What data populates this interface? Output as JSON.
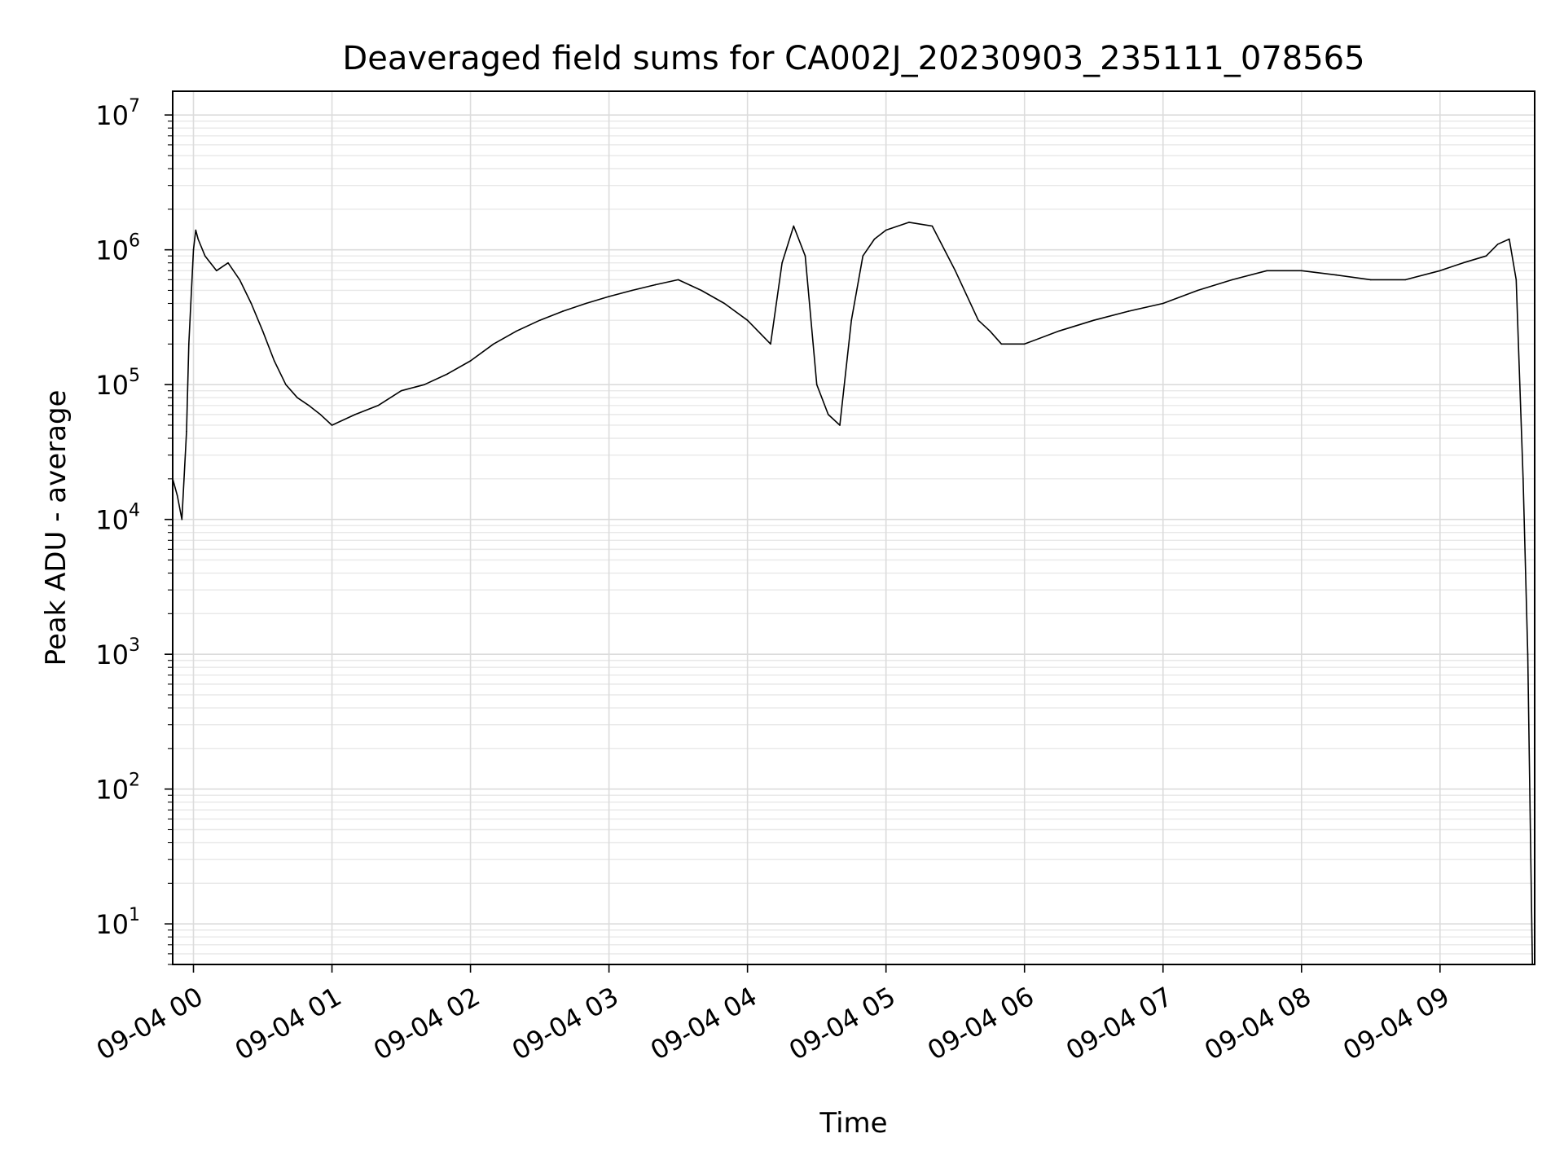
{
  "chart_data": {
    "type": "line",
    "title": "Deaveraged field sums for CA002J_20230903_235111_078565",
    "xlabel": "Time",
    "ylabel": "Peak ADU - average",
    "y_scale": "log",
    "ylim": [
      5,
      15000000
    ],
    "xlim": [
      "2023-09-03 23:51",
      "2023-09-04 09:41"
    ],
    "grid": true,
    "line_color": "#000000",
    "x_ticks": [
      "09-04 00",
      "09-04 01",
      "09-04 02",
      "09-04 03",
      "09-04 04",
      "09-04 05",
      "09-04 06",
      "09-04 07",
      "09-04 08",
      "09-04 09"
    ],
    "x_tick_times": [
      "2023-09-04 00:00",
      "2023-09-04 01:00",
      "2023-09-04 02:00",
      "2023-09-04 03:00",
      "2023-09-04 04:00",
      "2023-09-04 05:00",
      "2023-09-04 06:00",
      "2023-09-04 07:00",
      "2023-09-04 08:00",
      "2023-09-04 09:00"
    ],
    "y_ticks": [
      {
        "value": 10,
        "base": "10",
        "exp": "1"
      },
      {
        "value": 100,
        "base": "10",
        "exp": "2"
      },
      {
        "value": 1000,
        "base": "10",
        "exp": "3"
      },
      {
        "value": 10000,
        "base": "10",
        "exp": "4"
      },
      {
        "value": 100000,
        "base": "10",
        "exp": "5"
      },
      {
        "value": 1000000,
        "base": "10",
        "exp": "6"
      },
      {
        "value": 10000000,
        "base": "10",
        "exp": "7"
      }
    ],
    "series": [
      {
        "name": "",
        "x": [
          "2023-09-03 23:51",
          "2023-09-03 23:53",
          "2023-09-03 23:55",
          "2023-09-03 23:57",
          "2023-09-03 23:58",
          "2023-09-04 00:00",
          "2023-09-04 00:01",
          "2023-09-04 00:02",
          "2023-09-04 00:05",
          "2023-09-04 00:10",
          "2023-09-04 00:15",
          "2023-09-04 00:20",
          "2023-09-04 00:25",
          "2023-09-04 00:30",
          "2023-09-04 00:35",
          "2023-09-04 00:40",
          "2023-09-04 00:45",
          "2023-09-04 00:50",
          "2023-09-04 00:55",
          "2023-09-04 01:00",
          "2023-09-04 01:10",
          "2023-09-04 01:20",
          "2023-09-04 01:30",
          "2023-09-04 01:40",
          "2023-09-04 01:50",
          "2023-09-04 02:00",
          "2023-09-04 02:10",
          "2023-09-04 02:20",
          "2023-09-04 02:30",
          "2023-09-04 02:40",
          "2023-09-04 02:50",
          "2023-09-04 03:00",
          "2023-09-04 03:10",
          "2023-09-04 03:20",
          "2023-09-04 03:30",
          "2023-09-04 03:40",
          "2023-09-04 03:50",
          "2023-09-04 04:00",
          "2023-09-04 04:10",
          "2023-09-04 04:15",
          "2023-09-04 04:20",
          "2023-09-04 04:25",
          "2023-09-04 04:30",
          "2023-09-04 04:35",
          "2023-09-04 04:40",
          "2023-09-04 04:45",
          "2023-09-04 04:50",
          "2023-09-04 04:55",
          "2023-09-04 05:00",
          "2023-09-04 05:10",
          "2023-09-04 05:20",
          "2023-09-04 05:30",
          "2023-09-04 05:40",
          "2023-09-04 05:45",
          "2023-09-04 05:50",
          "2023-09-04 06:00",
          "2023-09-04 06:15",
          "2023-09-04 06:30",
          "2023-09-04 06:45",
          "2023-09-04 07:00",
          "2023-09-04 07:15",
          "2023-09-04 07:30",
          "2023-09-04 07:45",
          "2023-09-04 08:00",
          "2023-09-04 08:15",
          "2023-09-04 08:30",
          "2023-09-04 08:45",
          "2023-09-04 09:00",
          "2023-09-04 09:10",
          "2023-09-04 09:20",
          "2023-09-04 09:25",
          "2023-09-04 09:30",
          "2023-09-04 09:33",
          "2023-09-04 09:36",
          "2023-09-04 09:38",
          "2023-09-04 09:40"
        ],
        "y": [
          20000,
          15000,
          10000,
          45000,
          200000,
          1000000,
          1400000,
          1200000,
          900000,
          700000,
          800000,
          600000,
          400000,
          250000,
          150000,
          100000,
          80000,
          70000,
          60000,
          50000,
          60000,
          70000,
          90000,
          100000,
          120000,
          150000,
          200000,
          250000,
          300000,
          350000,
          400000,
          450000,
          500000,
          550000,
          600000,
          500000,
          400000,
          300000,
          200000,
          800000,
          1500000,
          900000,
          100000,
          60000,
          50000,
          300000,
          900000,
          1200000,
          1400000,
          1600000,
          1500000,
          700000,
          300000,
          250000,
          200000,
          200000,
          250000,
          300000,
          350000,
          400000,
          500000,
          600000,
          700000,
          700000,
          650000,
          600000,
          600000,
          700000,
          800000,
          900000,
          1100000,
          1200000,
          600000,
          20000,
          1000,
          5
        ]
      }
    ]
  }
}
